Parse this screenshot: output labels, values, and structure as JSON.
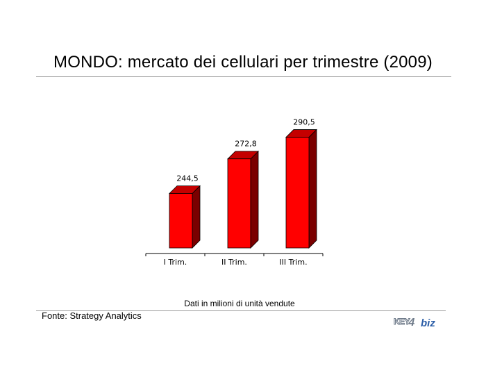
{
  "page": {
    "title": "MONDO: mercato dei cellulari per trimestre (2009)",
    "note": "Dati in milioni di unità vendute",
    "source": "Fonte: Strategy Analytics",
    "logo_text": "KEY4biz"
  },
  "colors": {
    "bar_front": "#ff0000",
    "bar_side": "#7a0000",
    "bar_top": "#c40000",
    "bar_edge": "#000000",
    "logo_key": "#6f7b8a",
    "logo_biz": "#2d5fa8"
  },
  "chart_data": {
    "type": "bar",
    "style": "3d",
    "categories": [
      "I Trim.",
      "II Trim.",
      "III Trim."
    ],
    "values": [
      244.5,
      272.8,
      290.5
    ],
    "value_labels": [
      "244,5",
      "272,8",
      "290,5"
    ],
    "title": "MONDO: mercato dei cellulari per trimestre (2009)",
    "xlabel": "",
    "ylabel": "",
    "grid": false,
    "legend": "none"
  }
}
